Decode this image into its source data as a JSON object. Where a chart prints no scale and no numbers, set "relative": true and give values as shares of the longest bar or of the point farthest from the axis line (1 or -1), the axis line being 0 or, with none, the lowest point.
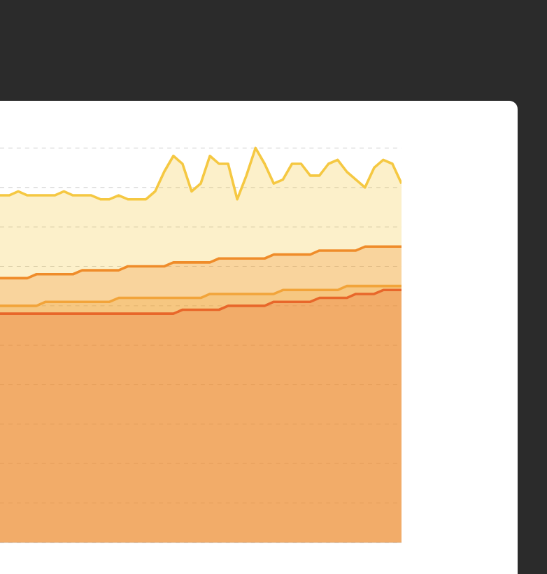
{
  "chart_data": {
    "type": "area",
    "relative": true,
    "grid": "y",
    "categories": [
      null,
      null,
      null,
      null,
      null,
      null,
      null,
      null,
      null,
      null,
      null,
      null,
      null,
      null,
      null,
      null,
      null,
      null,
      null,
      null,
      null,
      null,
      null,
      null,
      null,
      null,
      null,
      null,
      null,
      null,
      null,
      null,
      null,
      null,
      null,
      null,
      null,
      null,
      null,
      null,
      null,
      null,
      null,
      null,
      null
    ],
    "series": [
      {
        "color": "#f5c842",
        "values": [
          0.88,
          0.88,
          0.89,
          0.88,
          0.88,
          0.88,
          0.88,
          0.89,
          0.88,
          0.88,
          0.88,
          0.87,
          0.87,
          0.88,
          0.87,
          0.87,
          0.87,
          0.89,
          0.94,
          0.98,
          0.96,
          0.89,
          0.91,
          0.98,
          0.96,
          0.96,
          0.87,
          0.93,
          1.0,
          0.96,
          0.91,
          0.92,
          0.96,
          0.96,
          0.93,
          0.93,
          0.96,
          0.97,
          0.94,
          0.92,
          0.9,
          0.95,
          0.97,
          0.96,
          0.91
        ]
      },
      {
        "color": "#ef8c2a",
        "values": [
          0.67,
          0.67,
          0.67,
          0.67,
          0.68,
          0.68,
          0.68,
          0.68,
          0.68,
          0.69,
          0.69,
          0.69,
          0.69,
          0.69,
          0.7,
          0.7,
          0.7,
          0.7,
          0.7,
          0.71,
          0.71,
          0.71,
          0.71,
          0.71,
          0.72,
          0.72,
          0.72,
          0.72,
          0.72,
          0.72,
          0.73,
          0.73,
          0.73,
          0.73,
          0.73,
          0.74,
          0.74,
          0.74,
          0.74,
          0.74,
          0.75,
          0.75,
          0.75,
          0.75,
          0.75
        ]
      },
      {
        "color": "#f2a43a",
        "values": [
          0.6,
          0.6,
          0.6,
          0.6,
          0.6,
          0.61,
          0.61,
          0.61,
          0.61,
          0.61,
          0.61,
          0.61,
          0.61,
          0.62,
          0.62,
          0.62,
          0.62,
          0.62,
          0.62,
          0.62,
          0.62,
          0.62,
          0.62,
          0.63,
          0.63,
          0.63,
          0.63,
          0.63,
          0.63,
          0.63,
          0.63,
          0.64,
          0.64,
          0.64,
          0.64,
          0.64,
          0.64,
          0.64,
          0.65,
          0.65,
          0.65,
          0.65,
          0.65,
          0.65,
          0.65
        ]
      },
      {
        "color": "#e8672a",
        "values": [
          0.58,
          0.58,
          0.58,
          0.58,
          0.58,
          0.58,
          0.58,
          0.58,
          0.58,
          0.58,
          0.58,
          0.58,
          0.58,
          0.58,
          0.58,
          0.58,
          0.58,
          0.58,
          0.58,
          0.58,
          0.59,
          0.59,
          0.59,
          0.59,
          0.59,
          0.6,
          0.6,
          0.6,
          0.6,
          0.6,
          0.61,
          0.61,
          0.61,
          0.61,
          0.61,
          0.62,
          0.62,
          0.62,
          0.62,
          0.63,
          0.63,
          0.63,
          0.64,
          0.64,
          0.64
        ]
      }
    ]
  }
}
